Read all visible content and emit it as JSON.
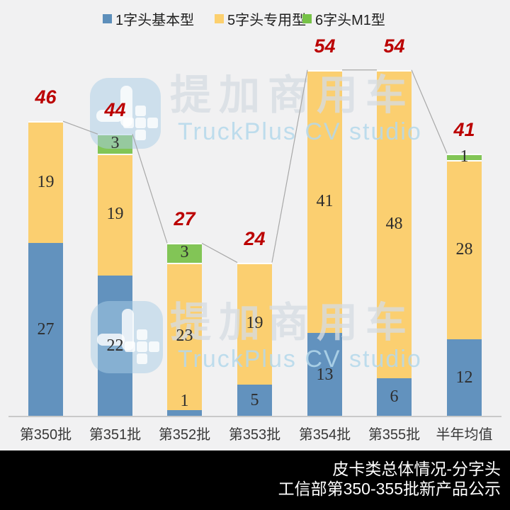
{
  "colors": {
    "background": "#f1f1f2",
    "footer_bg": "#000000",
    "footer_text": "#ffffff",
    "axis_line": "#c9c9c9",
    "connector_line": "#a8a8a8",
    "total_label": "#bb0000",
    "value_label": "#2e2e2e",
    "series_blue": "#6292be",
    "series_yellow": "#fbcf70",
    "series_green": "#82c556"
  },
  "legend": {
    "items": [
      {
        "label": "1字头基本型",
        "color": "#5d8fbb"
      },
      {
        "label": "5字头专用型",
        "color": "#fcd06e"
      },
      {
        "label": "6字头M1型",
        "color": "#76c247"
      }
    ]
  },
  "chart_data": {
    "type": "bar",
    "stacked": true,
    "categories": [
      "第350批",
      "第351批",
      "第352批",
      "第353批",
      "第354批",
      "第355批",
      "半年均值"
    ],
    "series": [
      {
        "name": "1字头基本型",
        "color": "#6292be",
        "values": [
          27,
          22,
          1,
          5,
          13,
          6,
          12
        ]
      },
      {
        "name": "5字头专用型",
        "color": "#fbcf70",
        "values": [
          19,
          19,
          23,
          19,
          41,
          48,
          28
        ]
      },
      {
        "name": "6字头M1型",
        "color": "#82c556",
        "values": [
          0,
          3,
          3,
          0,
          0,
          0,
          1
        ]
      }
    ],
    "totals": [
      46,
      44,
      27,
      24,
      54,
      54,
      41
    ],
    "ylim": [
      0,
      60
    ],
    "grid": false,
    "legend_position": "top",
    "value_labels": "inside-segments",
    "total_labels": "above-bars-red-bold-italic",
    "connector_lines": "between-adjacent-bar-tops"
  },
  "watermark": {
    "brand": "提加商用车",
    "subtitle": "TruckPlus CV studio"
  },
  "footer": {
    "line1": "皮卡类总体情况-分字头",
    "line2": "工信部第350-355批新产品公示"
  }
}
